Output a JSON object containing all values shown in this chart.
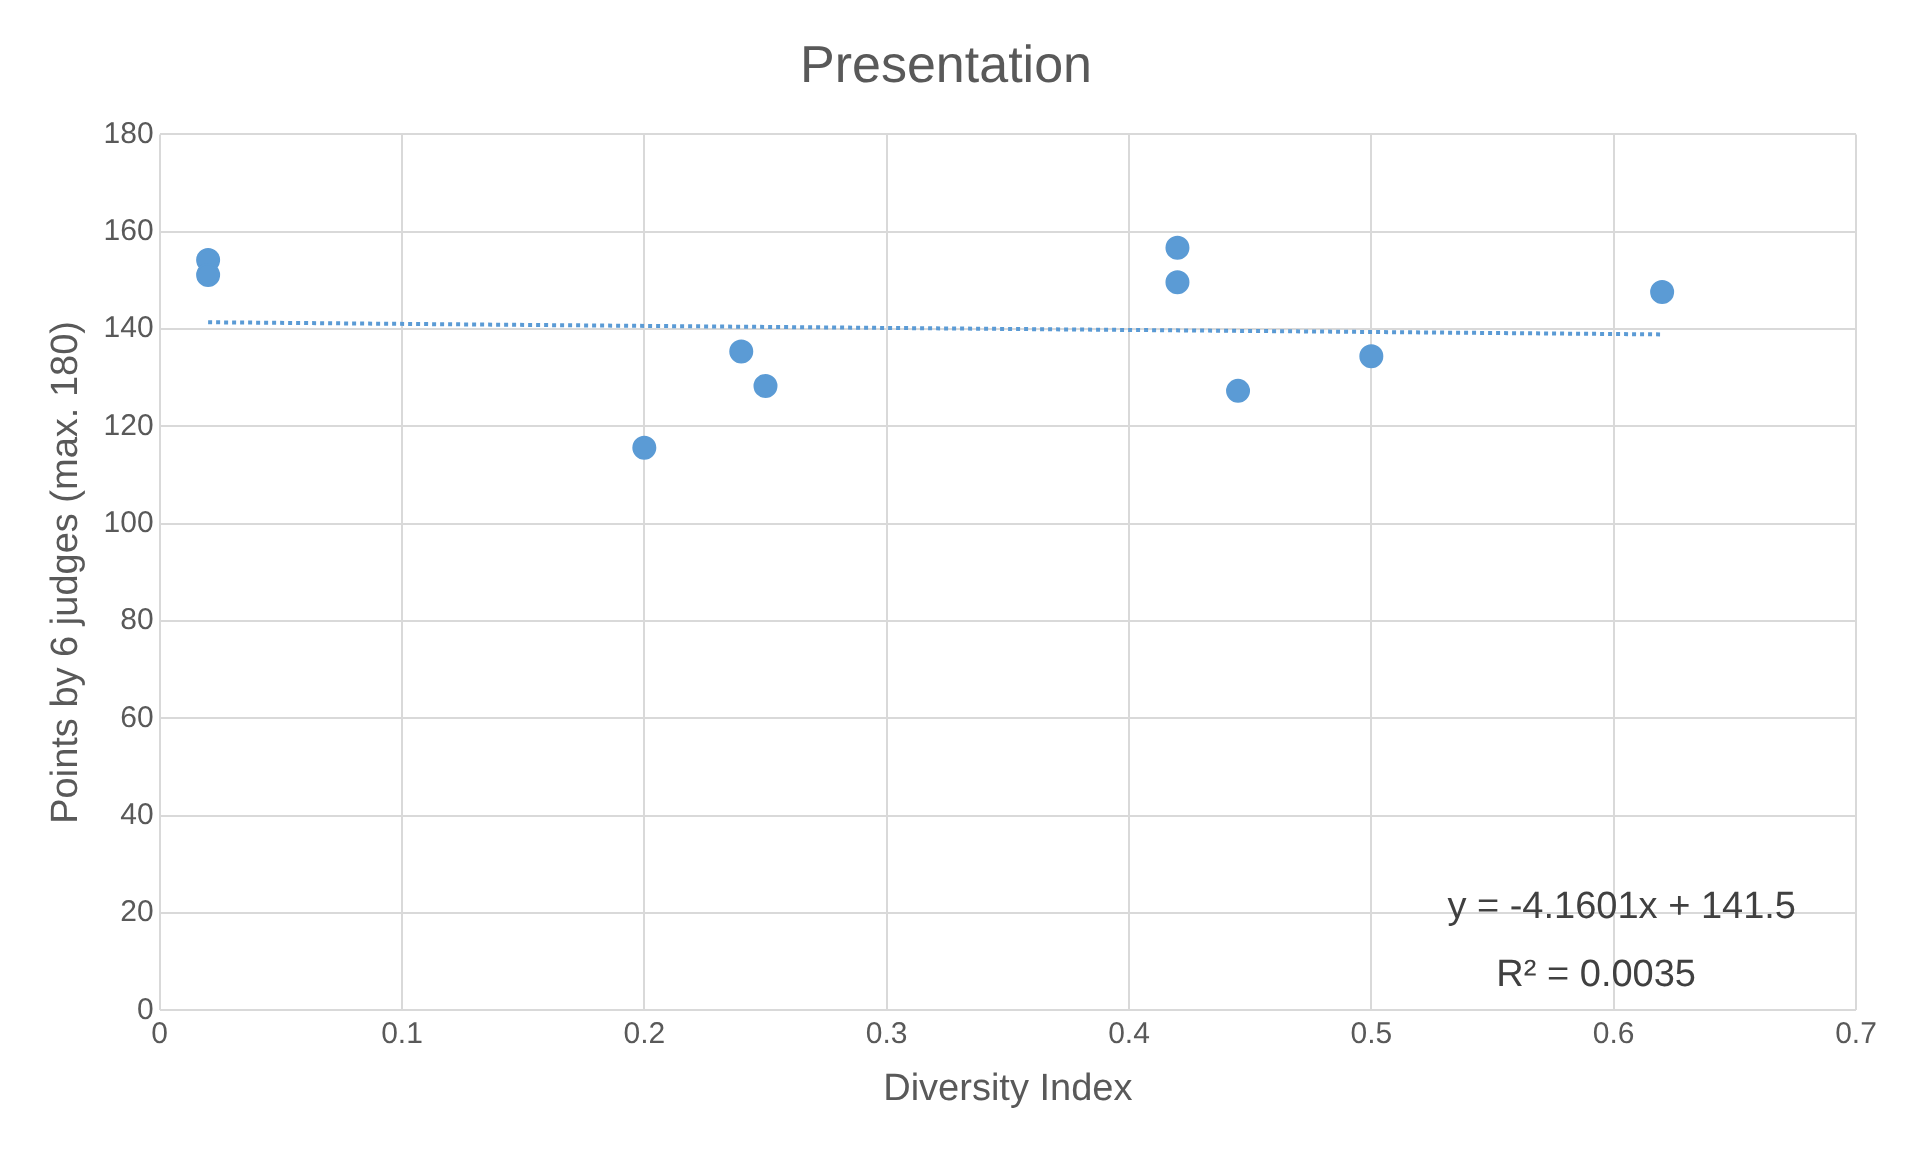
{
  "chart_data": {
    "type": "scatter",
    "title": "Presentation",
    "xlabel": "Diversity Index",
    "ylabel": "Points by 6 judges (max. 180)",
    "series": [
      {
        "type": "scatter",
        "color": "#5b9bd5",
        "x": [
          0.02,
          0.02,
          0.2,
          0.24,
          0.25,
          0.42,
          0.42,
          0.445,
          0.5,
          0.62
        ],
        "values": [
          154.2,
          151.1,
          115.6,
          135.4,
          128.3,
          156.7,
          149.6,
          127.3,
          134.4,
          147.6
        ],
        "marker": "circle"
      },
      {
        "type": "line",
        "color": "#5b9bd5",
        "x": [
          0.02,
          0.62
        ],
        "values": [
          141.4,
          138.9
        ],
        "line_style": "dotted",
        "marker": "none"
      }
    ],
    "annotations": [
      "y = -4.1601x + 141.5",
      "R² = 0.0035"
    ],
    "xlim": [
      0,
      0.7
    ],
    "xticks": [
      0,
      0.1,
      0.2,
      0.3,
      0.4,
      0.5,
      0.6,
      0.7
    ],
    "ylim": [
      0,
      180
    ],
    "yticks": [
      0,
      20,
      40,
      60,
      80,
      100,
      120,
      140,
      160,
      180
    ],
    "grid": true,
    "legend": false
  }
}
